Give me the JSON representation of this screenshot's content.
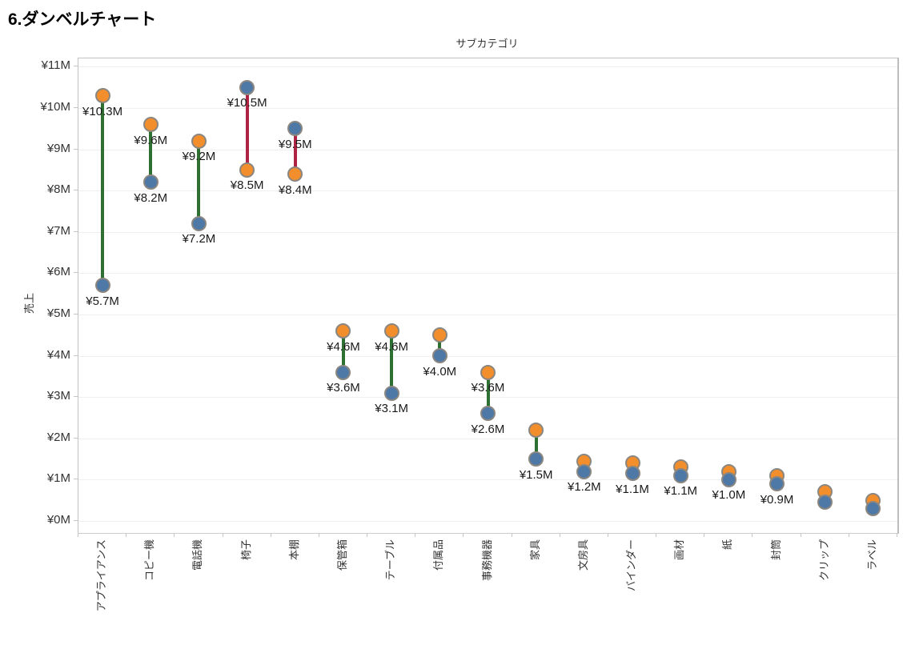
{
  "page": {
    "title": "6.ダンベルチャート"
  },
  "chart_data": {
    "type": "dumbbell",
    "title": "サブカテゴリ",
    "ylabel": "売上",
    "ylim": [
      0,
      11.5
    ],
    "grid": "horizontal",
    "y_ticks": [
      {
        "v": 0,
        "label": "¥0M"
      },
      {
        "v": 1,
        "label": "¥1M"
      },
      {
        "v": 2,
        "label": "¥2M"
      },
      {
        "v": 3,
        "label": "¥3M"
      },
      {
        "v": 4,
        "label": "¥4M"
      },
      {
        "v": 5,
        "label": "¥5M"
      },
      {
        "v": 6,
        "label": "¥6M"
      },
      {
        "v": 7,
        "label": "¥7M"
      },
      {
        "v": 8,
        "label": "¥8M"
      },
      {
        "v": 9,
        "label": "¥9M"
      },
      {
        "v": 10,
        "label": "¥10M"
      },
      {
        "v": 11,
        "label": "¥11M"
      }
    ],
    "categories": [
      "アプライアンス",
      "コピー機",
      "電話機",
      "椅子",
      "本棚",
      "保管箱",
      "テーブル",
      "付属品",
      "事務機器",
      "家具",
      "文房具",
      "バインダー",
      "画材",
      "紙",
      "封筒",
      "クリップ",
      "ラベル"
    ],
    "series": [
      {
        "name": "orange",
        "color": "#F28E2B",
        "values": [
          10.3,
          9.6,
          9.2,
          8.5,
          8.4,
          4.6,
          4.6,
          4.5,
          3.6,
          2.2,
          1.45,
          1.4,
          1.3,
          1.2,
          1.1,
          0.7,
          0.5
        ],
        "labels": [
          "¥10.3M",
          "¥9.6M",
          "¥9.2M",
          "¥8.5M",
          "¥8.4M",
          "¥4.6M",
          "¥4.6M",
          null,
          "¥3.6M",
          null,
          null,
          null,
          null,
          null,
          null,
          null,
          null
        ]
      },
      {
        "name": "blue",
        "color": "#4E79A7",
        "values": [
          5.7,
          8.2,
          7.2,
          10.5,
          9.5,
          3.6,
          3.1,
          4.0,
          2.6,
          1.5,
          1.2,
          1.15,
          1.1,
          1.0,
          0.9,
          0.45,
          0.3
        ],
        "labels": [
          "¥5.7M",
          "¥8.2M",
          "¥7.2M",
          "¥10.5M",
          "¥9.5M",
          "¥3.6M",
          "¥3.1M",
          "¥4.0M",
          "¥2.6M",
          "¥1.5M",
          "¥1.2M",
          "¥1.1M",
          "¥1.1M",
          "¥1.0M",
          "¥0.9M",
          null,
          null
        ]
      }
    ],
    "connector": [
      "green",
      "green",
      "green",
      "red",
      "red",
      "green",
      "green",
      "green",
      "green",
      "green",
      "green",
      "green",
      "green",
      "green",
      "green",
      "green",
      "green"
    ],
    "colors": {
      "green": "#2E7031",
      "red": "#B02443",
      "marker_stroke": "#8b8680",
      "gridline": "#efefef",
      "axis_text": "#333333"
    }
  }
}
